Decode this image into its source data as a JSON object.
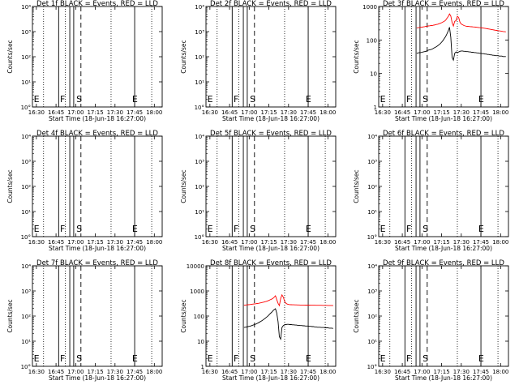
{
  "figure": {
    "xlabel": "Start Time (18-Jun-18 16:27:00)",
    "ylabel": "Counts/sec",
    "x_ticks": [
      "16:30",
      "16:45",
      "17:00",
      "17:15",
      "17:30",
      "17:45",
      "18:00"
    ],
    "x_tick_minutes": [
      3,
      18,
      33,
      48,
      63,
      78,
      93
    ],
    "colors": {
      "events": "#000000",
      "lld": "#ff0000",
      "axes": "#000000"
    }
  },
  "chart_data": [
    {
      "type": "line",
      "title": "Det 1f BLACK = Events, RED = LLD",
      "xlabel": "Start Time (18-Jun-18 16:27:00)",
      "ylabel": "Counts/sec",
      "yscale": "log",
      "ylim": [
        1,
        10000
      ],
      "ytick_labels": [
        "10°",
        "10¹",
        "10²",
        "10³",
        "10⁴"
      ],
      "markers": [
        "E",
        "F",
        "S",
        "E"
      ],
      "series": []
    },
    {
      "type": "line",
      "title": "Det 2f BLACK = Events, RED = LLD",
      "xlabel": "Start Time (18-Jun-18 16:27:00)",
      "ylabel": "Counts/sec",
      "yscale": "log",
      "ylim": [
        1,
        10000
      ],
      "ytick_labels": [
        "10°",
        "10¹",
        "10²",
        "10³",
        "10⁴"
      ],
      "markers": [
        "E",
        "F",
        "S",
        "E"
      ],
      "series": []
    },
    {
      "type": "line",
      "title": "Det 3f BLACK = Events, RED = LLD",
      "xlabel": "Start Time (18-Jun-18 16:27:00)",
      "ylabel": "Counts/sec",
      "yscale": "log",
      "ylim": [
        1,
        1000
      ],
      "ytick_labels": [
        "1",
        "10",
        "100",
        "1000"
      ],
      "markers": [
        "E",
        "F",
        "S",
        "E"
      ],
      "series": [
        {
          "color": "#ff0000",
          "x": [
            29,
            30,
            31,
            32,
            33,
            34,
            35,
            36,
            37,
            38,
            39,
            40,
            41,
            42,
            43,
            44,
            45,
            46,
            47,
            48,
            49,
            50,
            51,
            52,
            53,
            54,
            55,
            56,
            57,
            58,
            59,
            60,
            61,
            62,
            63,
            64,
            65,
            66,
            67,
            68,
            69,
            70,
            71,
            72,
            73,
            74,
            75,
            76,
            77,
            78,
            79,
            80,
            81,
            82,
            83,
            84,
            85,
            86,
            87,
            88,
            89,
            90,
            91,
            92,
            93,
            94,
            95,
            96,
            97
          ],
          "values": [
            230,
            232,
            236,
            240,
            242,
            245,
            250,
            255,
            258,
            262,
            266,
            270,
            272,
            278,
            283,
            290,
            296,
            305,
            315,
            328,
            345,
            360,
            385,
            440,
            500,
            600,
            520,
            330,
            260,
            360,
            380,
            510,
            470,
            340,
            300,
            285,
            270,
            262,
            257,
            255,
            252,
            250,
            248,
            246,
            244,
            241,
            239,
            236,
            234,
            232,
            229,
            226,
            223,
            220,
            216,
            212,
            209,
            206,
            202,
            199,
            196,
            193,
            190,
            187,
            185,
            182,
            179,
            177,
            175
          ]
        },
        {
          "color": "#000000",
          "x": [
            29,
            30,
            31,
            32,
            33,
            34,
            35,
            36,
            37,
            38,
            39,
            40,
            41,
            42,
            43,
            44,
            45,
            46,
            47,
            48,
            49,
            50,
            51,
            52,
            53,
            54,
            55,
            56,
            57,
            58,
            59,
            60,
            61,
            62,
            63,
            64,
            65,
            66,
            67,
            68,
            69,
            70,
            71,
            72,
            73,
            74,
            75,
            76,
            77,
            78,
            79,
            80,
            81,
            82,
            83,
            84,
            85,
            86,
            87,
            88,
            89,
            90,
            91,
            92,
            93,
            94,
            95,
            96,
            97
          ],
          "values": [
            40,
            41,
            42,
            42,
            43,
            44,
            45,
            46,
            48,
            50,
            51,
            52,
            54,
            57,
            60,
            63,
            67,
            72,
            78,
            86,
            96,
            110,
            125,
            150,
            185,
            240,
            120,
            30,
            25,
            40,
            44,
            42,
            44,
            46,
            47,
            47,
            46,
            46,
            45,
            45,
            44,
            44,
            43,
            43,
            42,
            42,
            41,
            41,
            40,
            40,
            39,
            39,
            38,
            38,
            37,
            37,
            36,
            36,
            35,
            35,
            34,
            34,
            34,
            33,
            33,
            33,
            32,
            32,
            32
          ]
        }
      ]
    },
    {
      "type": "line",
      "title": "Det 4f BLACK = Events, RED = LLD",
      "xlabel": "Start Time (18-Jun-18 16:27:00)",
      "ylabel": "Counts/sec",
      "yscale": "log",
      "ylim": [
        1,
        10000
      ],
      "ytick_labels": [
        "10°",
        "10¹",
        "10²",
        "10³",
        "10⁴"
      ],
      "markers": [
        "E",
        "F",
        "S",
        "E"
      ],
      "series": []
    },
    {
      "type": "line",
      "title": "Det 5f BLACK = Events, RED = LLD",
      "xlabel": "Start Time (18-Jun-18 16:27:00)",
      "ylabel": "Counts/sec",
      "yscale": "log",
      "ylim": [
        1,
        10000
      ],
      "ytick_labels": [
        "10°",
        "10¹",
        "10²",
        "10³",
        "10⁴"
      ],
      "markers": [
        "E",
        "F",
        "S",
        "E"
      ],
      "series": []
    },
    {
      "type": "line",
      "title": "Det 6f BLACK = Events, RED = LLD",
      "xlabel": "Start Time (18-Jun-18 16:27:00)",
      "ylabel": "Counts/sec",
      "yscale": "log",
      "ylim": [
        1,
        10000
      ],
      "ytick_labels": [
        "10°",
        "10¹",
        "10²",
        "10³",
        "10⁴"
      ],
      "markers": [
        "E",
        "F",
        "S",
        "E"
      ],
      "series": []
    },
    {
      "type": "line",
      "title": "Det 7f BLACK = Events, RED = LLD",
      "xlabel": "Start Time (18-Jun-18 16:27:00)",
      "ylabel": "Counts/sec",
      "yscale": "log",
      "ylim": [
        1,
        10000
      ],
      "ytick_labels": [
        "10°",
        "10¹",
        "10²",
        "10³",
        "10⁴"
      ],
      "markers": [
        "E",
        "F",
        "S",
        "E"
      ],
      "series": []
    },
    {
      "type": "line",
      "title": "Det 8f BLACK = Events, RED = LLD",
      "xlabel": "Start Time (18-Jun-18 16:27:00)",
      "ylabel": "Counts/sec",
      "yscale": "log",
      "ylim": [
        1,
        10000
      ],
      "ytick_labels": [
        "1",
        "10",
        "100",
        "1000",
        "10000"
      ],
      "markers": [
        "E",
        "F",
        "S",
        "E"
      ],
      "series": [
        {
          "color": "#ff0000",
          "x": [
            29,
            30,
            31,
            32,
            33,
            34,
            35,
            36,
            37,
            38,
            39,
            40,
            41,
            42,
            43,
            44,
            45,
            46,
            47,
            48,
            49,
            50,
            51,
            52,
            53,
            54,
            55,
            56,
            57,
            58,
            59,
            60,
            61,
            62,
            63,
            64,
            65,
            66,
            67,
            68,
            69,
            70,
            71,
            72,
            73,
            74,
            75,
            76,
            77,
            78,
            79,
            80,
            81,
            82,
            83,
            84,
            85,
            86,
            87,
            88,
            89,
            90,
            91,
            92,
            93,
            94,
            95,
            96,
            97
          ],
          "values": [
            270,
            275,
            278,
            282,
            285,
            290,
            295,
            300,
            305,
            310,
            316,
            322,
            330,
            338,
            348,
            360,
            372,
            385,
            400,
            420,
            445,
            470,
            500,
            560,
            640,
            450,
            320,
            260,
            500,
            700,
            560,
            380,
            320,
            300,
            290,
            285,
            282,
            280,
            280,
            278,
            278,
            276,
            276,
            275,
            275,
            274,
            274,
            273,
            273,
            272,
            272,
            271,
            271,
            270,
            270,
            269,
            269,
            268,
            268,
            268,
            267,
            267,
            266,
            266,
            265,
            265,
            264,
            264,
            263
          ]
        },
        {
          "color": "#000000",
          "x": [
            29,
            30,
            31,
            32,
            33,
            34,
            35,
            36,
            37,
            38,
            39,
            40,
            41,
            42,
            43,
            44,
            45,
            46,
            47,
            48,
            49,
            50,
            51,
            52,
            53,
            54,
            55,
            56,
            57,
            58,
            59,
            60,
            61,
            62,
            63,
            64,
            65,
            66,
            67,
            68,
            69,
            70,
            71,
            72,
            73,
            74,
            75,
            76,
            77,
            78,
            79,
            80,
            81,
            82,
            83,
            84,
            85,
            86,
            87,
            88,
            89,
            90,
            91,
            92,
            93,
            94,
            95,
            96,
            97
          ],
          "values": [
            35,
            36,
            37,
            38,
            39,
            40,
            42,
            44,
            46,
            48,
            51,
            54,
            58,
            62,
            67,
            73,
            80,
            88,
            98,
            110,
            125,
            140,
            160,
            180,
            195,
            130,
            60,
            15,
            12,
            35,
            42,
            45,
            46,
            47,
            47,
            46,
            46,
            45,
            45,
            44,
            44,
            43,
            43,
            42,
            42,
            41,
            41,
            40,
            40,
            40,
            39,
            39,
            38,
            38,
            37,
            37,
            36,
            36,
            36,
            35,
            35,
            35,
            34,
            34,
            34,
            33,
            33,
            33,
            32
          ]
        }
      ]
    },
    {
      "type": "line",
      "title": "Det 9f BLACK = Events, RED = LLD",
      "xlabel": "Start Time (18-Jun-18 16:27:00)",
      "ylabel": "Counts/sec",
      "yscale": "log",
      "ylim": [
        1,
        10000
      ],
      "ytick_labels": [
        "10°",
        "10¹",
        "10²",
        "10³",
        "10⁴"
      ],
      "markers": [
        "E",
        "F",
        "S",
        "E"
      ],
      "series": []
    }
  ]
}
